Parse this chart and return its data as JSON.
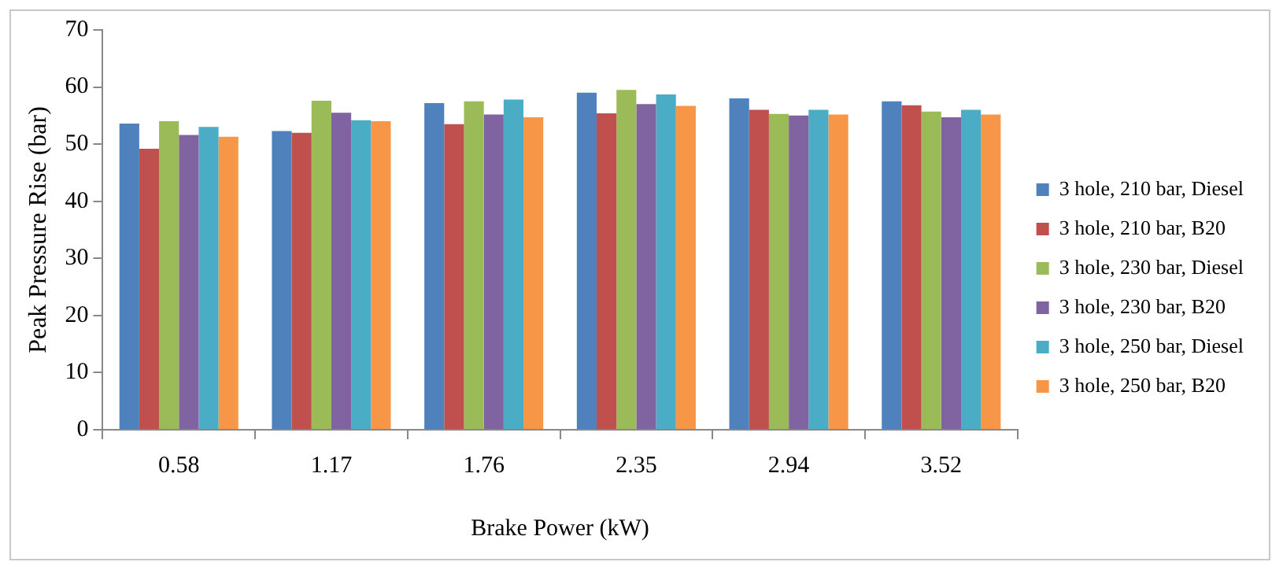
{
  "chart_data": {
    "type": "bar",
    "xlabel": "Brake Power (kW)",
    "ylabel": "Peak Pressure Rise (bar)",
    "categories": [
      "0.58",
      "1.17",
      "1.76",
      "2.35",
      "2.94",
      "3.52"
    ],
    "series": [
      {
        "name": "3 hole, 210 bar, Diesel",
        "color": "#4f81bd",
        "values": [
          53.6,
          52.3,
          57.2,
          59,
          58,
          57.5
        ]
      },
      {
        "name": "3 hole, 210 bar, B20",
        "color": "#c0504d",
        "values": [
          49.2,
          52,
          53.5,
          55.4,
          56,
          56.8
        ]
      },
      {
        "name": "3 hole, 230 bar, Diesel",
        "color": "#9bbb59",
        "values": [
          54,
          57.6,
          57.5,
          59.5,
          55.3,
          55.7
        ]
      },
      {
        "name": "3 hole, 230 bar, B20",
        "color": "#8064a2",
        "values": [
          51.6,
          55.5,
          55.2,
          57,
          55,
          54.7
        ]
      },
      {
        "name": "3 hole, 250 bar, Diesel",
        "color": "#4bacc6",
        "values": [
          53,
          54.2,
          57.8,
          58.7,
          56,
          56
        ]
      },
      {
        "name": "3 hole, 250 bar, B20",
        "color": "#f79646",
        "values": [
          51.3,
          54,
          54.7,
          56.7,
          55.2,
          55.2
        ]
      }
    ],
    "ylim": [
      0,
      70
    ],
    "yticks": [
      0,
      10,
      20,
      30,
      40,
      50,
      60,
      70
    ],
    "grid": false,
    "legend": "right"
  }
}
